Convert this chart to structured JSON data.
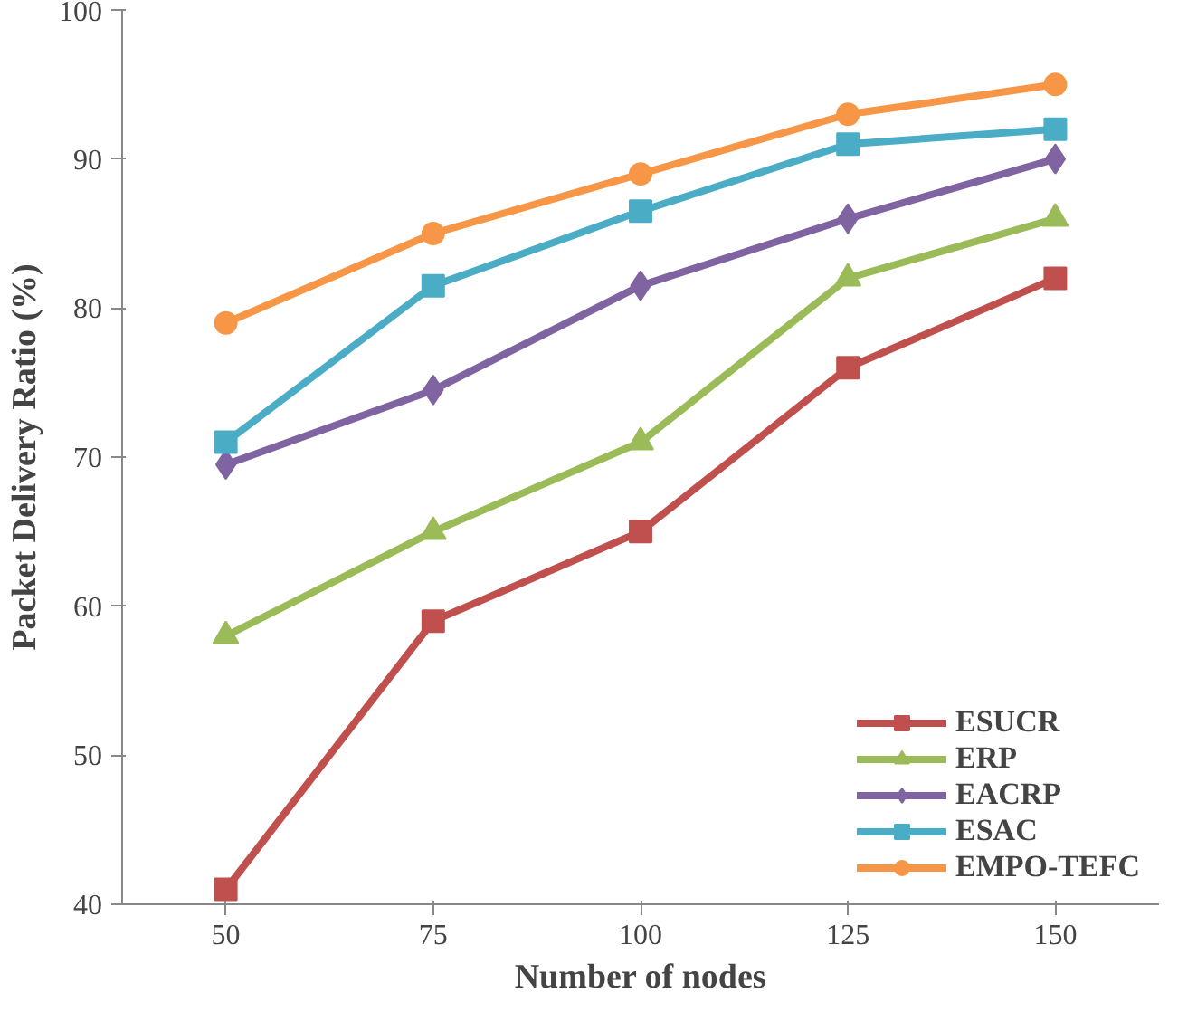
{
  "chart_data": {
    "type": "line",
    "xlabel": "Number of nodes",
    "ylabel": "Packet Delivery Ratio (%)",
    "categories": [
      "50",
      "75",
      "100",
      "125",
      "150"
    ],
    "ylim": [
      40,
      100
    ],
    "yticks": [
      40,
      50,
      60,
      70,
      80,
      90,
      100
    ],
    "grid": false,
    "legend": "bottom right",
    "line_style": "solid",
    "series": [
      {
        "name": "ESUCR",
        "color": "#c0504d",
        "marker": "square",
        "values": [
          41,
          59,
          65,
          76,
          82
        ]
      },
      {
        "name": "ERP",
        "color": "#9bbb59",
        "marker": "triangle",
        "values": [
          58,
          65,
          71,
          82,
          86
        ]
      },
      {
        "name": "EACRP",
        "color": "#8064a2",
        "marker": "diamond",
        "values": [
          69.5,
          74.5,
          81.5,
          86,
          90
        ]
      },
      {
        "name": "ESAC",
        "color": "#4bacc6",
        "marker": "square",
        "values": [
          71,
          81.5,
          86.5,
          91,
          92
        ]
      },
      {
        "name": "EMPO-TEFC",
        "color": "#f79646",
        "marker": "circle",
        "values": [
          79,
          85,
          89,
          93,
          95
        ]
      }
    ]
  }
}
